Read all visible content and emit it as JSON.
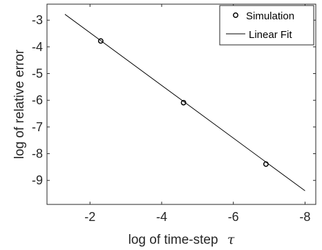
{
  "chart_data": {
    "type": "line",
    "xlabel": "log of time-step",
    "xlabel_symbol": "τ",
    "ylabel": "log of relative error",
    "xlim": [
      -0.8,
      -8.3
    ],
    "ylim": [
      -9.9,
      -2.4
    ],
    "x_reversed": true,
    "x_ticks": [
      -2,
      -4,
      -6,
      -8
    ],
    "x_tick_labels": [
      "-2",
      "-4",
      "-6",
      "-8"
    ],
    "y_ticks": [
      -3,
      -4,
      -5,
      -6,
      -7,
      -8,
      -9
    ],
    "y_tick_labels": [
      "-3",
      "-4",
      "-5",
      "-6",
      "-7",
      "-8",
      "-9"
    ],
    "grid": false,
    "legend_position": "top-right",
    "series": [
      {
        "name": "Simulation",
        "kind": "markers",
        "marker": "circle",
        "x": [
          -2.3,
          -4.61,
          -6.91
        ],
        "y": [
          -3.78,
          -6.09,
          -8.39
        ]
      },
      {
        "name": "Linear Fit",
        "kind": "line",
        "x": [
          -1.3,
          -8.0
        ],
        "y": [
          -2.78,
          -9.39
        ]
      }
    ],
    "colors": {
      "axis": "#262626",
      "series": "#000000"
    }
  }
}
